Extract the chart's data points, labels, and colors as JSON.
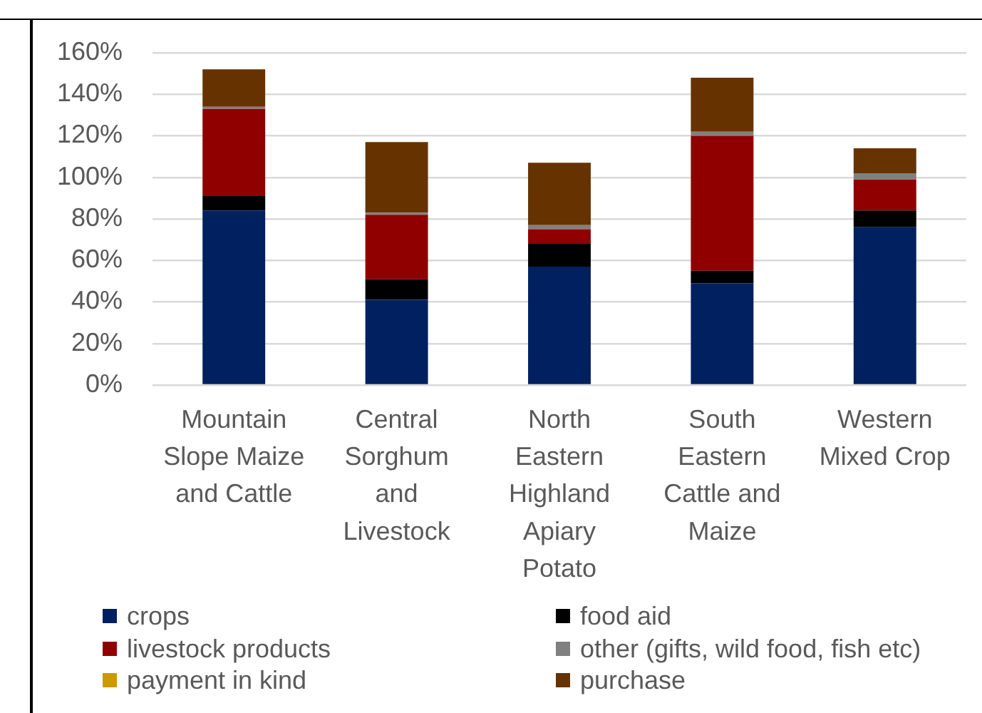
{
  "chart_data": {
    "type": "bar",
    "categories": [
      "Mountain Slope Maize and Cattle",
      "Central Sorghum and Livestock",
      "North Eastern Highland Apiary Potato",
      "South Eastern Cattle and Maize",
      "Western Mixed Crop"
    ],
    "series": [
      {
        "name": "crops",
        "color": "#002060",
        "values": [
          84,
          41,
          57,
          49,
          76
        ]
      },
      {
        "name": "food aid",
        "color": "#000000",
        "values": [
          7,
          10,
          11,
          6,
          8
        ]
      },
      {
        "name": "livestock products",
        "color": "#900000",
        "values": [
          42,
          31,
          7,
          65,
          15
        ]
      },
      {
        "name": "other (gifts, wild food, fish etc)",
        "color": "#808080",
        "values": [
          1,
          1,
          2,
          2,
          3
        ]
      },
      {
        "name": "payment in kind",
        "color": "#cc9900",
        "values": [
          0,
          0,
          0,
          0,
          0
        ]
      },
      {
        "name": "purchase",
        "color": "#663300",
        "values": [
          18,
          34,
          30,
          26,
          12
        ]
      }
    ],
    "stacked": true,
    "ylim": [
      0,
      160
    ],
    "yticks": [
      {
        "value": 0,
        "label": "0%"
      },
      {
        "value": 20,
        "label": "20%"
      },
      {
        "value": 40,
        "label": "40%"
      },
      {
        "value": 60,
        "label": "60%"
      },
      {
        "value": 80,
        "label": "80%"
      },
      {
        "value": 100,
        "label": "100%"
      },
      {
        "value": 120,
        "label": "120%"
      },
      {
        "value": 140,
        "label": "140%"
      },
      {
        "value": 160,
        "label": "160%"
      }
    ],
    "grid": "y",
    "legend": "bottom"
  }
}
